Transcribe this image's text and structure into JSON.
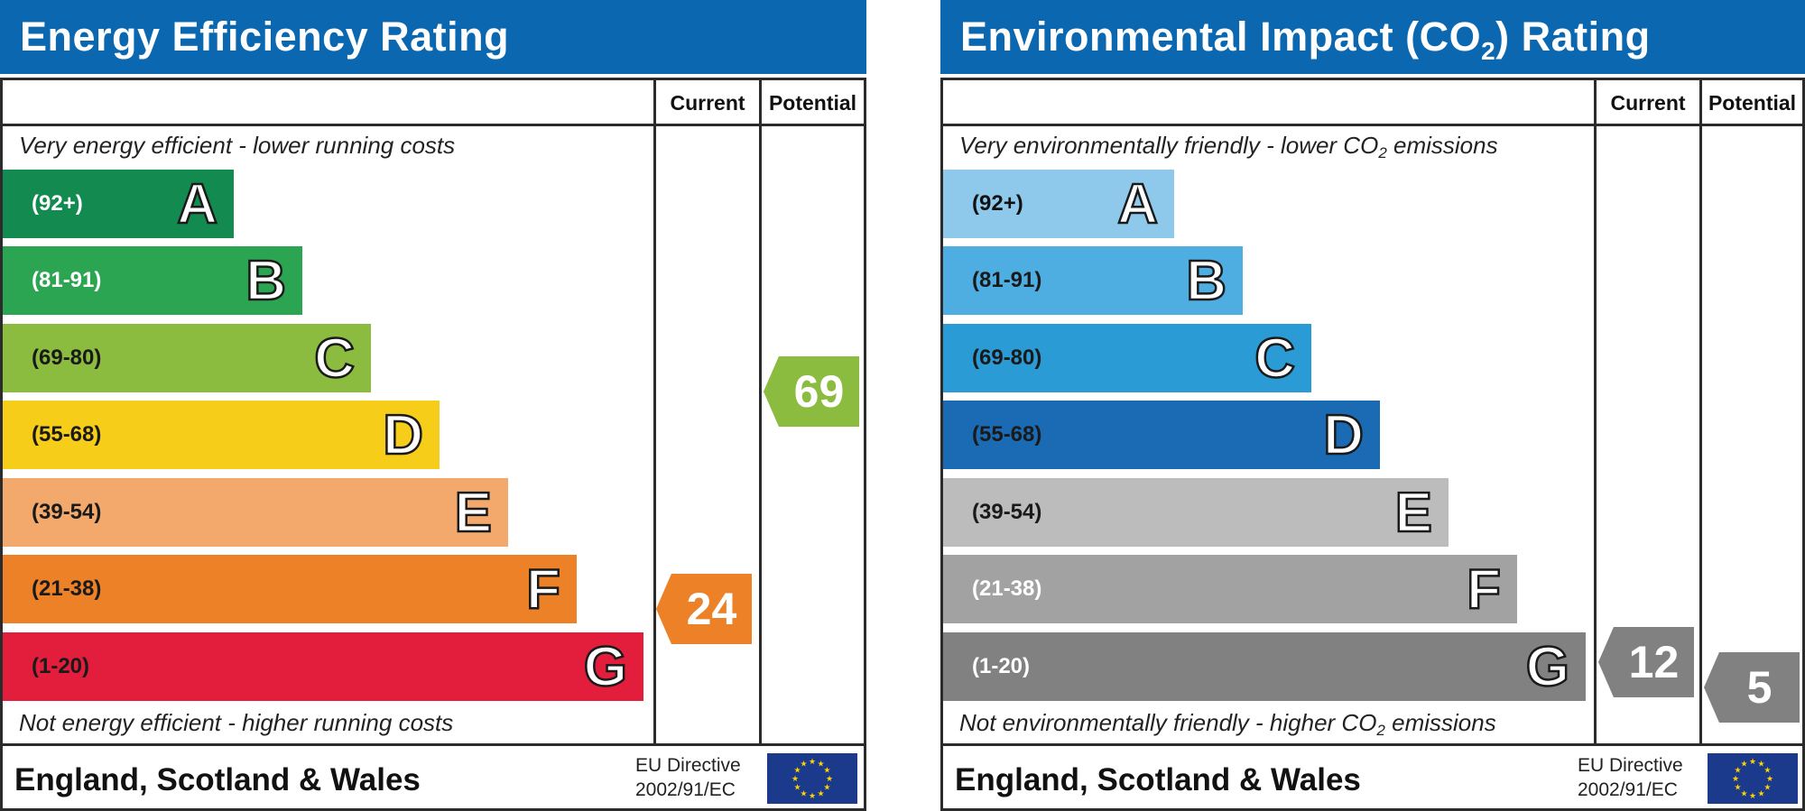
{
  "chart_data": [
    {
      "type": "bar",
      "title": "Energy Efficiency Rating",
      "columns": [
        "Current",
        "Potential"
      ],
      "caption_top": "Very energy efficient - lower running costs",
      "caption_bottom": "Not energy efficient - higher running costs",
      "bands": [
        {
          "range": "(92+)",
          "letter": "A",
          "color": "#138a4f",
          "text_color": "#ffffff"
        },
        {
          "range": "(81-91)",
          "letter": "B",
          "color": "#2ba552",
          "text_color": "#ffffff"
        },
        {
          "range": "(69-80)",
          "letter": "C",
          "color": "#8cbc3f",
          "text_color": "#1a1a1a"
        },
        {
          "range": "(55-68)",
          "letter": "D",
          "color": "#f6cd18",
          "text_color": "#1a1a1a"
        },
        {
          "range": "(39-54)",
          "letter": "E",
          "color": "#f2a96b",
          "text_color": "#1a1a1a"
        },
        {
          "range": "(21-38)",
          "letter": "F",
          "color": "#ec8128",
          "text_color": "#1a1a1a"
        },
        {
          "range": "(1-20)",
          "letter": "G",
          "color": "#e31d3c",
          "text_color": "#1a1a1a"
        }
      ],
      "current": {
        "value": "24",
        "band": "F",
        "color": "#ec8128"
      },
      "potential": {
        "value": "69",
        "band": "C",
        "color": "#8cbc3f"
      },
      "footer": {
        "country": "England, Scotland & Wales",
        "directive_line1": "EU Directive",
        "directive_line2": "2002/91/EC"
      }
    },
    {
      "type": "bar",
      "title_main": "Environmental Impact (CO",
      "title_sub": "2",
      "title_end": ") Rating",
      "columns": [
        "Current",
        "Potential"
      ],
      "caption_top_main": "Very environmentally friendly - lower CO",
      "caption_top_sub": "2",
      "caption_top_end": " emissions",
      "caption_bottom_main": "Not environmentally friendly - higher CO",
      "caption_bottom_sub": "2",
      "caption_bottom_end": " emissions",
      "bands": [
        {
          "range": "(92+)",
          "letter": "A",
          "color": "#8ec9ec",
          "text_color": "#111111"
        },
        {
          "range": "(81-91)",
          "letter": "B",
          "color": "#4eaee2",
          "text_color": "#1a1a1a"
        },
        {
          "range": "(69-80)",
          "letter": "C",
          "color": "#2b9bd6",
          "text_color": "#1a1a1a"
        },
        {
          "range": "(55-68)",
          "letter": "D",
          "color": "#1a6ab4",
          "text_color": "#1a1a1a"
        },
        {
          "range": "(39-54)",
          "letter": "E",
          "color": "#bcbcbc",
          "text_color": "#1a1a1a"
        },
        {
          "range": "(21-38)",
          "letter": "F",
          "color": "#a2a2a2",
          "text_color": "#ffffff"
        },
        {
          "range": "(1-20)",
          "letter": "G",
          "color": "#818181",
          "text_color": "#ffffff"
        }
      ],
      "current": {
        "value": "12",
        "band": "G",
        "color": "#818181"
      },
      "potential": {
        "value": "5",
        "band": "G",
        "color": "#818181"
      },
      "footer": {
        "country": "England, Scotland & Wales",
        "directive_line1": "EU Directive",
        "directive_line2": "2002/91/EC"
      }
    }
  ],
  "eu_flag": {
    "icon": "eu-flag-icon",
    "background": "#1b3a8c",
    "stars": "#ffd200"
  }
}
